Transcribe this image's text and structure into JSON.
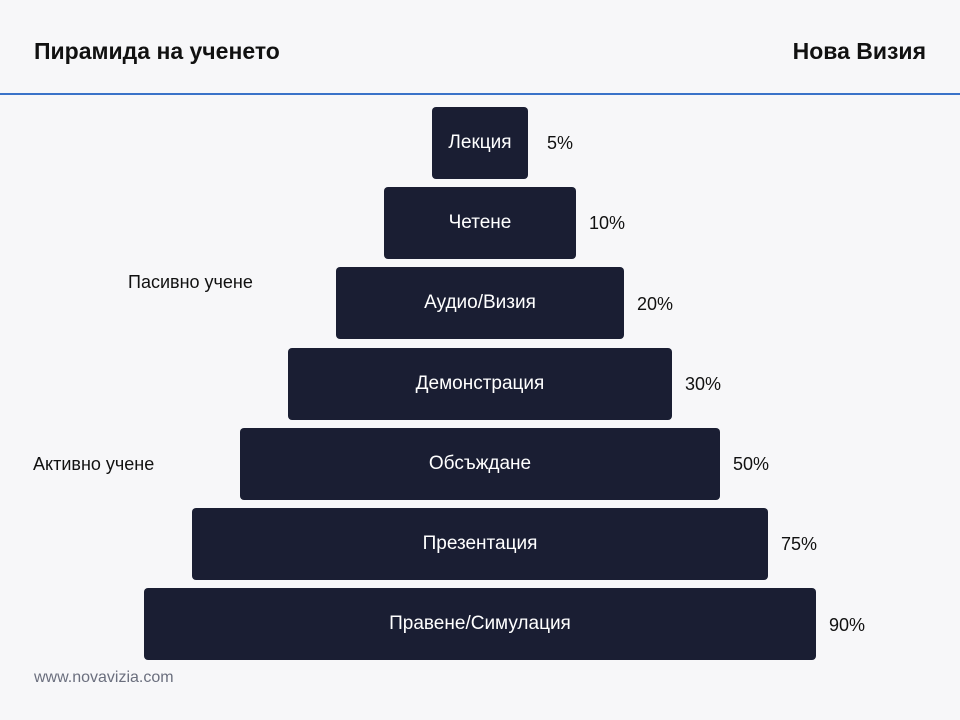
{
  "header": {
    "title": "Пирамида на ученето",
    "brand": "Нова Визия"
  },
  "pyramid": {
    "tiers": [
      {
        "label": "Лекция",
        "percent": "5%"
      },
      {
        "label": "Четене",
        "percent": "10%"
      },
      {
        "label": "Аудио/Визия",
        "percent": "20%"
      },
      {
        "label": "Демонстрация",
        "percent": "30%"
      },
      {
        "label": "Обсъждане",
        "percent": "50%"
      },
      {
        "label": "Презентация",
        "percent": "75%"
      },
      {
        "label": "Правене/Симулация",
        "percent": "90%"
      }
    ],
    "groups": {
      "passive": "Пасивно учене",
      "active": "Активно учене"
    }
  },
  "footer": {
    "website": "www.novavizia.com"
  },
  "colors": {
    "tier_fill": "#1a1e33",
    "header_rule": "#3a73c9",
    "background": "#f7f7f9"
  }
}
